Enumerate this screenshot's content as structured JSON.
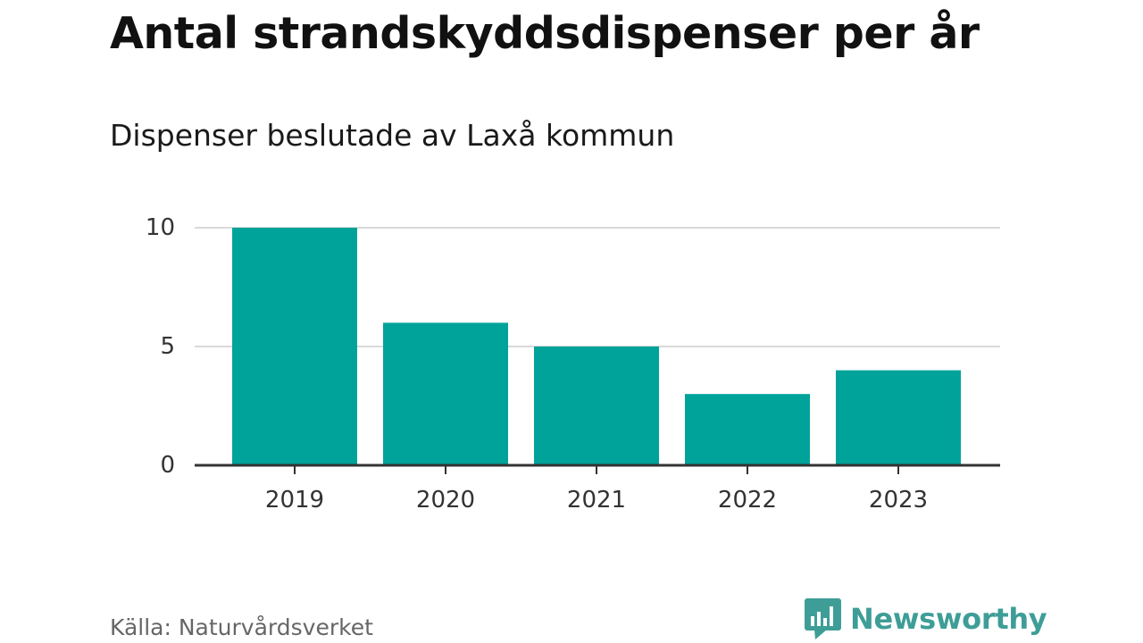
{
  "title": "Antal strandskyddsdispenser per år",
  "subtitle": "Dispenser beslutade av Laxå kommun",
  "source": "Källa: Naturvårdsverket",
  "brand": {
    "name": "Newsworthy",
    "logo_icon": "bar-chart-speech-bubble-icon",
    "color": "#3e9d97"
  },
  "colors": {
    "bar": "#00a39a",
    "grid": "#d9d9d9",
    "axis": "#333333",
    "text": "#333333"
  },
  "chart_data": {
    "type": "bar",
    "title": "Antal strandskyddsdispenser per år",
    "subtitle": "Dispenser beslutade av Laxå kommun",
    "xlabel": "",
    "ylabel": "",
    "categories": [
      "2019",
      "2020",
      "2021",
      "2022",
      "2023"
    ],
    "values": [
      10,
      6,
      5,
      3,
      4
    ],
    "ylim": [
      0,
      10
    ],
    "yticks": [
      0,
      5,
      10
    ],
    "grid": true,
    "legend": "none"
  }
}
